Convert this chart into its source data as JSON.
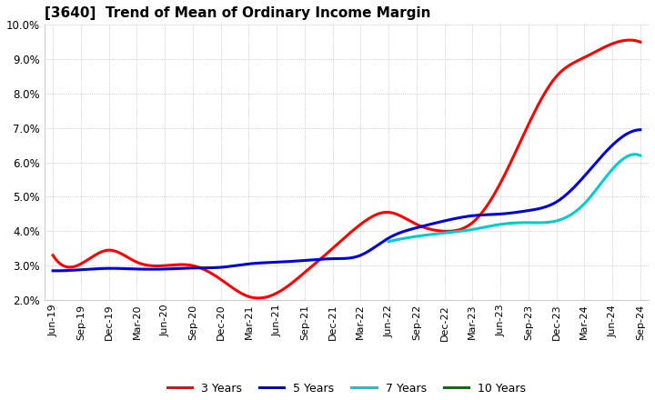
{
  "title": "[3640]  Trend of Mean of Ordinary Income Margin",
  "background_color": "#ffffff",
  "plot_bg_color": "#ffffff",
  "grid_color": "#aaaaaa",
  "legend_labels": [
    "3 Years",
    "5 Years",
    "7 Years",
    "10 Years"
  ],
  "legend_colors": [
    "#ff0000",
    "#0000dd",
    "#00cccc",
    "#007700"
  ],
  "x_labels": [
    "Jun-19",
    "Sep-19",
    "Dec-19",
    "Mar-20",
    "Jun-20",
    "Sep-20",
    "Dec-20",
    "Mar-21",
    "Jun-21",
    "Sep-21",
    "Dec-21",
    "Mar-22",
    "Jun-22",
    "Sep-22",
    "Dec-22",
    "Mar-23",
    "Jun-23",
    "Sep-23",
    "Dec-23",
    "Mar-24",
    "Jun-24",
    "Sep-24"
  ],
  "series_3y": [
    3.3,
    3.05,
    3.45,
    3.1,
    3.0,
    3.0,
    2.6,
    2.1,
    2.2,
    2.8,
    3.5,
    4.2,
    4.55,
    4.2,
    4.0,
    4.25,
    5.4,
    7.1,
    8.5,
    9.05,
    9.45,
    9.5
  ],
  "series_5y": [
    2.85,
    2.88,
    2.92,
    2.9,
    2.9,
    2.93,
    2.95,
    3.05,
    3.1,
    3.15,
    3.2,
    3.3,
    3.8,
    4.1,
    4.3,
    4.45,
    4.5,
    4.6,
    4.85,
    5.6,
    6.5,
    6.95
  ],
  "series_7y": [
    null,
    null,
    null,
    null,
    null,
    null,
    null,
    null,
    null,
    null,
    null,
    null,
    3.7,
    3.85,
    3.95,
    4.05,
    4.2,
    4.25,
    4.3,
    4.8,
    5.8,
    6.2
  ],
  "series_10y": [
    null,
    null,
    null,
    null,
    null,
    null,
    null,
    null,
    null,
    null,
    null,
    null,
    null,
    null,
    null,
    null,
    null,
    null,
    null,
    null,
    null,
    null
  ],
  "ylim": [
    0.02,
    0.1
  ],
  "yticks": [
    0.02,
    0.03,
    0.04,
    0.05,
    0.06,
    0.07,
    0.08,
    0.09,
    0.1
  ]
}
